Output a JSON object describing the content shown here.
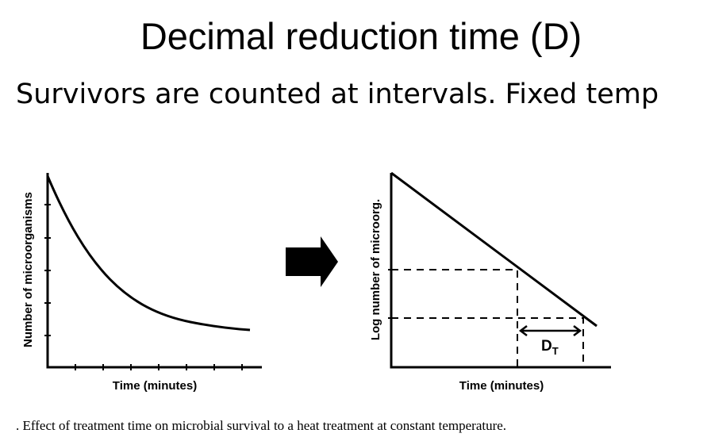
{
  "header": {
    "title": "Decimal reduction time (D)",
    "subtitle": "Survivors are counted at intervals. Fixed temp"
  },
  "left_panel": {
    "y_label": "Number of microorganisms",
    "x_label": "Time (minutes)"
  },
  "right_panel": {
    "y_label": "Log number of microorg.",
    "x_label": "Time (minutes)",
    "interval_label": "D",
    "interval_subscript": "T"
  },
  "caption": ". Effect of treatment time on microbial survival to a heat treatment at constant temperature."
}
